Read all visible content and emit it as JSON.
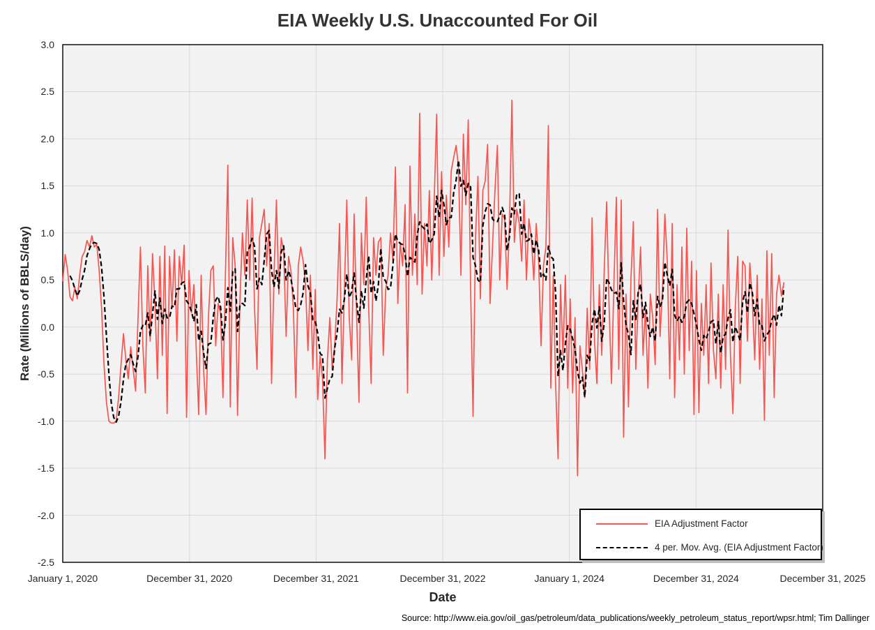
{
  "source": "Source: http://www.eia.gov/oil_gas/petroleum/data_publications/weekly_petroleum_status_report/wpsr.html; Tim Dallinger",
  "chart_data": {
    "type": "line",
    "title": "EIA Weekly U.S. Unaccounted For Oil",
    "xlabel": "Date",
    "ylabel": "Rate (Millions of BBLS/day)",
    "ylim": [
      -2.5,
      3.0
    ],
    "grid": true,
    "legend_position": "bottom-right",
    "plot_background": "#F2F2F2",
    "gridline_color": "#D9D9D9",
    "y_ticks": [
      3.0,
      2.5,
      2.0,
      1.5,
      1.0,
      0.5,
      0.0,
      -0.5,
      -1.0,
      -1.5,
      -2.0,
      -2.5
    ],
    "x_tick_labels": [
      "January 1, 2020",
      "December 31, 2020",
      "December 31, 2021",
      "December 31, 2022",
      "January 1, 2024",
      "December 31, 2024",
      "December 31, 2025"
    ],
    "x_unit": "weeks since January 1, 2020",
    "x_axis_total_weeks": 313,
    "series": [
      {
        "name": "EIA Adjustment Factor",
        "color": "#F85450",
        "style": "solid",
        "values": [
          0.49,
          0.77,
          0.6,
          0.32,
          0.28,
          0.42,
          0.3,
          0.56,
          0.75,
          0.8,
          0.92,
          0.85,
          0.97,
          0.85,
          0.88,
          0.6,
          0.2,
          -0.4,
          -0.8,
          -1.0,
          -1.02,
          -1.02,
          -1.0,
          -0.75,
          -0.4,
          -0.07,
          -0.35,
          -0.55,
          -0.21,
          -0.45,
          -0.68,
          0.1,
          0.85,
          -0.2,
          -0.7,
          0.65,
          -0.15,
          0.78,
          0.25,
          -0.55,
          0.75,
          -0.3,
          0.86,
          -0.92,
          0.75,
          0.2,
          0.82,
          -0.15,
          0.75,
          0.45,
          0.87,
          -0.96,
          0.6,
          0.15,
          0.45,
          -0.25,
          -0.93,
          0.55,
          -0.45,
          -0.93,
          0.1,
          0.6,
          0.65,
          -0.2,
          0.25,
          0.15,
          -0.75,
          0.55,
          1.72,
          -0.85,
          0.95,
          0.65,
          -0.94,
          0.3,
          1.0,
          0.55,
          1.35,
          0.5,
          1.37,
          0.2,
          -0.45,
          0.95,
          1.1,
          1.25,
          0.65,
          1.1,
          -0.6,
          0.55,
          1.35,
          0.35,
          0.95,
          0.8,
          -0.1,
          0.75,
          0.6,
          0.2,
          -0.75,
          0.65,
          0.85,
          0.7,
          0.45,
          -0.25,
          0.55,
          -0.45,
          0.4,
          -0.77,
          -0.3,
          -0.55,
          -1.4,
          -0.35,
          0.1,
          -0.45,
          -0.2,
          0.3,
          1.1,
          -0.6,
          0.4,
          1.35,
          0.1,
          -0.35,
          1.2,
          0.15,
          -0.8,
          1.0,
          0.45,
          1.38,
          0.2,
          -0.6,
          0.95,
          0.55,
          0.9,
          0.95,
          -0.3,
          0.4,
          0.55,
          1.0,
          0.7,
          1.7,
          0.25,
          0.9,
          0.65,
          1.3,
          -0.7,
          1.71,
          0.55,
          1.2,
          0.45,
          2.27,
          0.35,
          1.1,
          0.65,
          1.45,
          0.5,
          1.35,
          2.26,
          0.55,
          1.65,
          0.75,
          1.4,
          0.85,
          1.66,
          1.8,
          1.93,
          1.7,
          0.55,
          2.05,
          1.3,
          2.2,
          0.4,
          -0.95,
          0.95,
          1.6,
          0.3,
          1.45,
          1.55,
          1.94,
          0.25,
          0.85,
          1.45,
          1.93,
          0.5,
          1.2,
          1.15,
          0.4,
          1.1,
          2.41,
          0.9,
          1.25,
          1.1,
          0.7,
          1.35,
          0.5,
          1.15,
          0.95,
          0.5,
          1.1,
          0.7,
          -0.2,
          0.65,
          0.85,
          2.14,
          -0.65,
          0.55,
          -0.6,
          -1.4,
          0.45,
          -0.3,
          0.55,
          -0.65,
          0.3,
          -0.7,
          0.1,
          -1.58,
          -0.2,
          -0.45,
          -0.75,
          0.2,
          -0.45,
          1.16,
          -0.15,
          -0.6,
          0.45,
          -0.3,
          0.6,
          1.33,
          0.25,
          -0.6,
          0.45,
          1.38,
          -0.45,
          1.35,
          -1.17,
          0.35,
          -0.85,
          0.5,
          1.12,
          -0.45,
          0.3,
          0.85,
          -0.3,
          0.2,
          -0.65,
          0.35,
          0.1,
          -0.4,
          1.25,
          -0.1,
          0.4,
          1.2,
          0.7,
          -0.55,
          1.1,
          -0.75,
          0.45,
          -0.35,
          0.85,
          -0.5,
          1.05,
          -0.25,
          0.7,
          -0.93,
          0.6,
          -0.91,
          0.25,
          -0.3,
          0.45,
          -0.6,
          0.68,
          -0.25,
          -0.55,
          0.35,
          -0.65,
          0.45,
          -0.45,
          1.03,
          -0.3,
          -0.92,
          0.2,
          0.75,
          -0.6,
          0.7,
          0.65,
          -0.15,
          0.68,
          0.3,
          -0.35,
          0.55,
          -0.45,
          0.3,
          -0.99,
          0.81,
          -0.3,
          0.78,
          -0.75,
          0.35,
          0.55,
          0.33,
          0.47
        ]
      },
      {
        "name": "4 per. Mov. Avg. (EIA Adjustment Factor)",
        "color": "#000000",
        "style": "dashed",
        "derived_from": "trailing 4-period moving average of EIA Adjustment Factor"
      }
    ]
  }
}
